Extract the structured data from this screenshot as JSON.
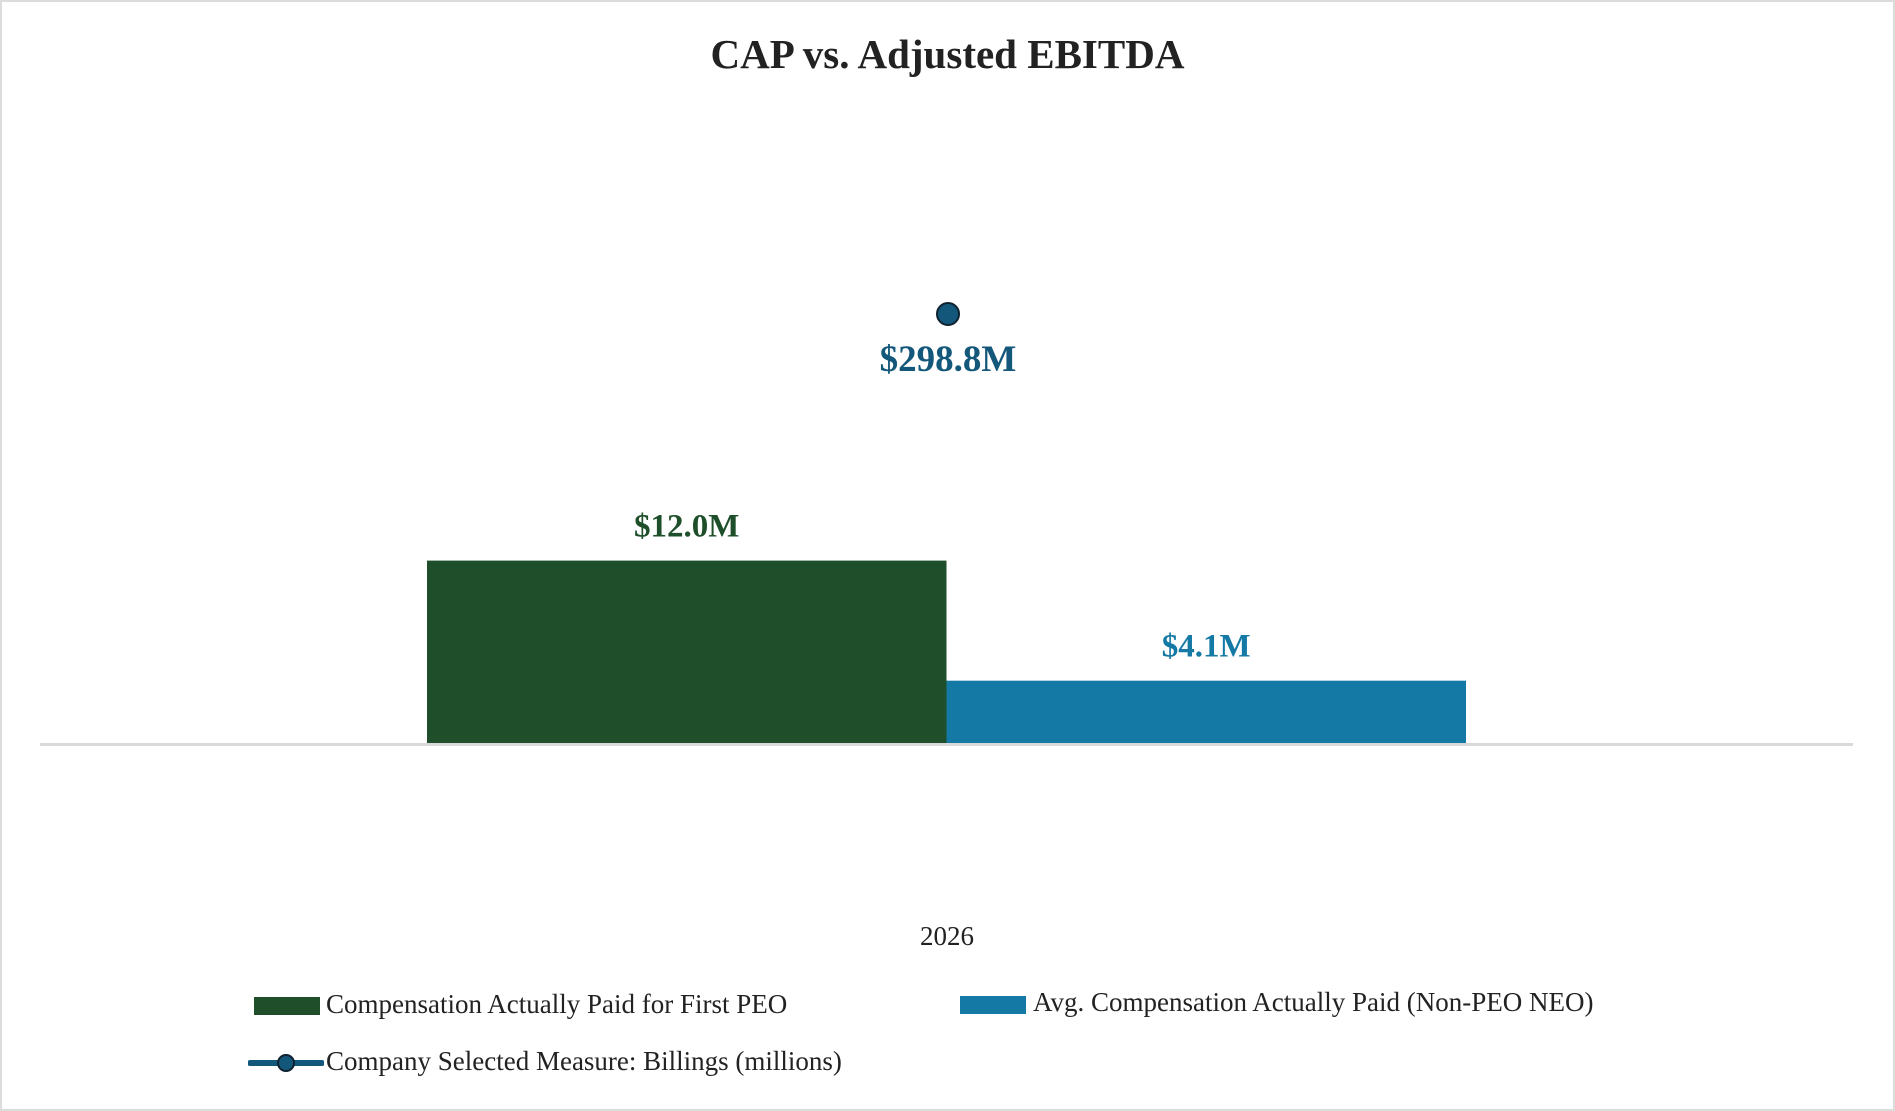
{
  "chart_data": {
    "type": "bar",
    "title": "CAP vs. Adjusted EBITDA",
    "categories": [
      "2026"
    ],
    "series": [
      {
        "name": "Compensation Actually Paid for First PEO",
        "kind": "bar",
        "values": [
          12.0
        ],
        "labels": [
          "$12.0M"
        ],
        "color": "#1e4f2a"
      },
      {
        "name": "Avg. Compensation Actually Paid (Non-PEO NEO)",
        "kind": "bar",
        "values": [
          4.1
        ],
        "labels": [
          "$4.1M"
        ],
        "color": "#1479a4"
      },
      {
        "name": "Company Selected Measure: Billings (millions)",
        "kind": "line",
        "values": [
          298.8
        ],
        "labels": [
          "$298.8M"
        ],
        "color": "#13577a"
      }
    ],
    "grid": false,
    "legend_position": "bottom"
  }
}
